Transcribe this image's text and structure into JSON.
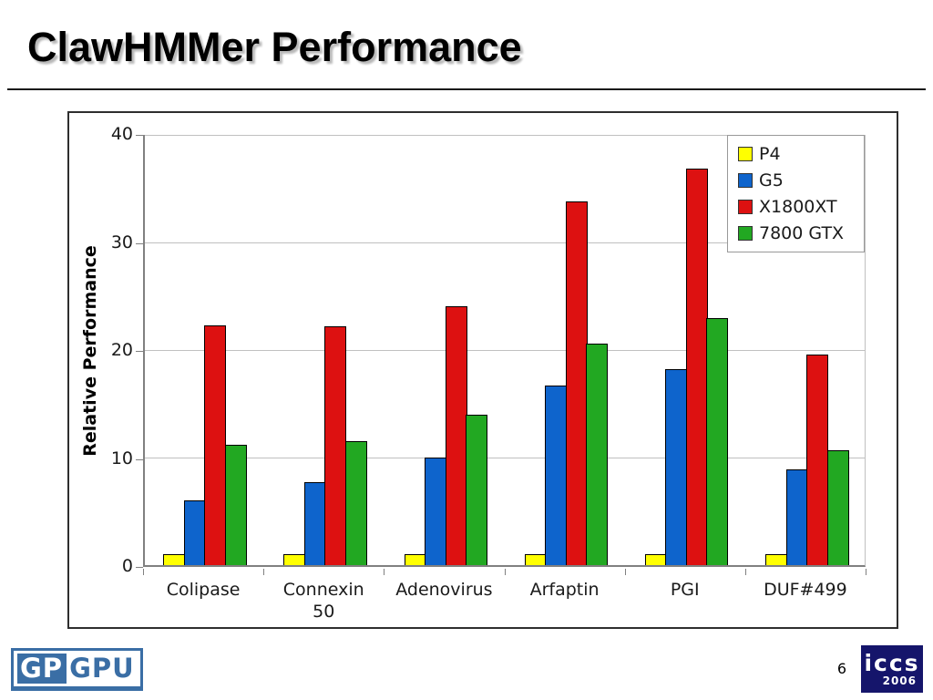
{
  "slide": {
    "title": "ClawHMMer Performance",
    "page_number": "6"
  },
  "chart_data": {
    "type": "bar",
    "title": "",
    "xlabel": "",
    "ylabel": "Relative Performance",
    "ylim": [
      0,
      40
    ],
    "yticks": [
      0,
      10,
      20,
      30,
      40
    ],
    "grid": true,
    "legend_position": "top-right",
    "categories": [
      "Colipase",
      "Connexin\n50",
      "Adenovirus",
      "Arfaptin",
      "PGI",
      "DUF#499"
    ],
    "series": [
      {
        "name": "P4",
        "color": "#FFFF00",
        "values": [
          1.0,
          1.0,
          1.0,
          1.0,
          1.0,
          1.0
        ]
      },
      {
        "name": "G5",
        "color": "#0E64CC",
        "values": [
          6.0,
          7.7,
          10.0,
          16.7,
          18.2,
          8.9
        ]
      },
      {
        "name": "X1800XT",
        "color": "#DD1111",
        "values": [
          22.3,
          22.2,
          24.1,
          33.8,
          36.9,
          19.6
        ]
      },
      {
        "name": "7800 GTX",
        "color": "#22A822",
        "values": [
          11.2,
          11.5,
          14.0,
          20.6,
          23.0,
          10.7
        ]
      }
    ]
  },
  "footer": {
    "gpgpu_logo": {
      "left_text": "GP",
      "right_text": "GPU",
      "blue": "#3A6EA5"
    },
    "iccs_logo": {
      "line1": "iccs",
      "line2": "2006",
      "navy": "#15156B"
    }
  }
}
